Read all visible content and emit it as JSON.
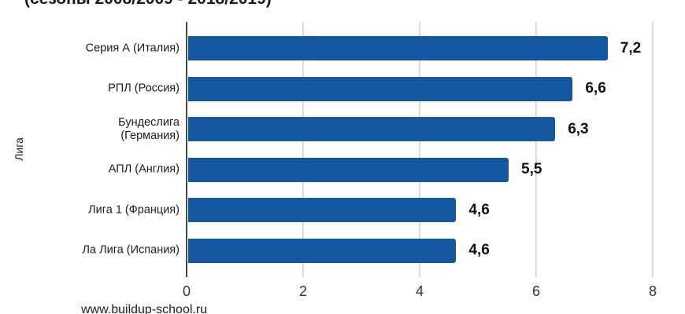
{
  "title": {
    "text": "(сезоны 2008/2009 - 2018/2019)"
  },
  "watermark": {
    "text": "www.buildup-school.ru"
  },
  "chart_data": {
    "type": "bar",
    "orientation": "horizontal",
    "title": "(сезоны 2008/2009 - 2018/2019)",
    "categories": [
      "Серия А (Италия)",
      "РПЛ (Россия)",
      "Бундеслига\n(Германия)",
      "АПЛ (Англия)",
      "Лига 1 (Франция)",
      "Ла Лига (Испания)"
    ],
    "values": [
      7.2,
      6.6,
      6.3,
      5.5,
      4.6,
      4.6
    ],
    "value_labels": [
      "7,2",
      "6,6",
      "6,3",
      "5,5",
      "4,6",
      "4,6"
    ],
    "xlabel": "",
    "ylabel": "Лига",
    "xlim": [
      0,
      8
    ],
    "x_ticks": [
      0,
      2,
      4,
      6,
      8
    ],
    "bar_color": "#1556a0",
    "gridline_color": "#d9d9d9",
    "axis_line_color": "#4a4a4a",
    "grid": true,
    "legend": false
  }
}
